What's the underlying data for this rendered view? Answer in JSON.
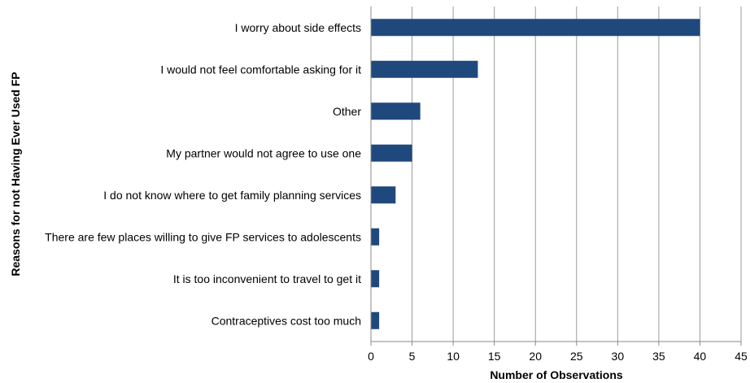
{
  "chart_data": {
    "type": "bar",
    "orientation": "horizontal",
    "title": "",
    "xlabel": "Number of Observations",
    "ylabel": "Reasons for not Having Ever Used FP",
    "categories": [
      "I worry about side effects",
      "I would not feel comfortable asking for it",
      "Other",
      "My partner would not agree to use one",
      "I do not know where to get family planning services",
      "There are few places willing to give FP services to adolescents",
      "It is too inconvenient to travel to get it",
      "Contraceptives cost too much"
    ],
    "values": [
      40,
      13,
      6,
      5,
      3,
      1,
      1,
      1
    ],
    "xlim": [
      0,
      45
    ],
    "xticks": [
      0,
      5,
      10,
      15,
      20,
      25,
      30,
      35,
      40,
      45
    ],
    "grid": "vertical",
    "bar_color": "#1f497d"
  }
}
